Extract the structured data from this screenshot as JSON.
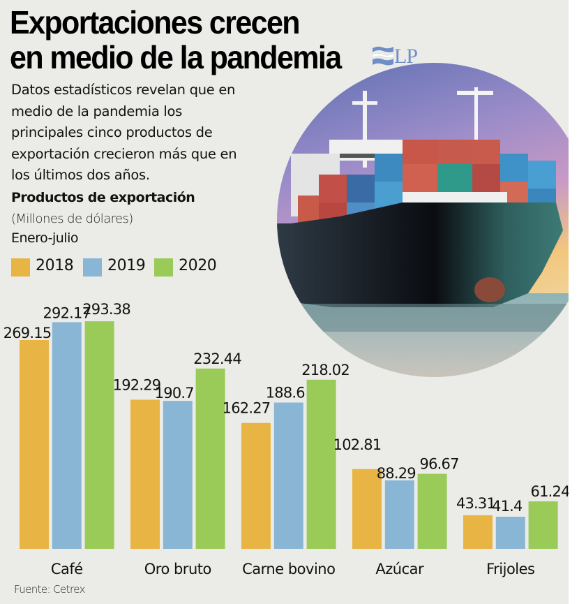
{
  "header": {
    "title_line1": "Exportaciones crecen",
    "title_line2": "en medio de la pandemia",
    "logo_text": "LP",
    "logo_icon": "flag-waves-icon"
  },
  "intro": {
    "lines": [
      "Datos estadísticos revelan que en",
      "medio de la pandemia los",
      "principales cinco productos de",
      "exportación crecieron más que en",
      "los últimos dos años."
    ]
  },
  "photo": {
    "description": "container-ship-photo"
  },
  "colors": {
    "background": "#EBECE7",
    "s2018": "#E8B545",
    "s2019": "#8AB6D6",
    "s2020": "#9ACB58",
    "logo": "#6F8EC8"
  },
  "chart_data": {
    "type": "bar",
    "title": "Productos de exportación",
    "subtitle": "(Millones de dólares)",
    "period": "Enero-julio",
    "xlabel": "",
    "ylabel": "",
    "ylim": [
      0,
      300
    ],
    "grid": false,
    "legend_position": "top-left",
    "categories": [
      "Café",
      "Oro bruto",
      "Carne bovino",
      "Azúcar",
      "Frijoles"
    ],
    "series": [
      {
        "name": "2018",
        "color": "#E8B545",
        "values": [
          269.15,
          192.29,
          162.27,
          102.81,
          43.31
        ],
        "labels": [
          "269.15",
          "192.29",
          "162.27",
          "102.81",
          "43.31"
        ]
      },
      {
        "name": "2019",
        "color": "#8AB6D6",
        "values": [
          292.17,
          190.7,
          188.6,
          88.29,
          41.4
        ],
        "labels": [
          "292.17",
          "190.7",
          "188.6",
          "88.29",
          "41.4"
        ]
      },
      {
        "name": "2020",
        "color": "#9ACB58",
        "values": [
          293.38,
          232.44,
          218.02,
          96.67,
          61.24
        ],
        "labels": [
          "293.38",
          "232.44",
          "218.02",
          "96.67",
          "61.24"
        ]
      }
    ],
    "source": "Fuente: Cetrex"
  }
}
